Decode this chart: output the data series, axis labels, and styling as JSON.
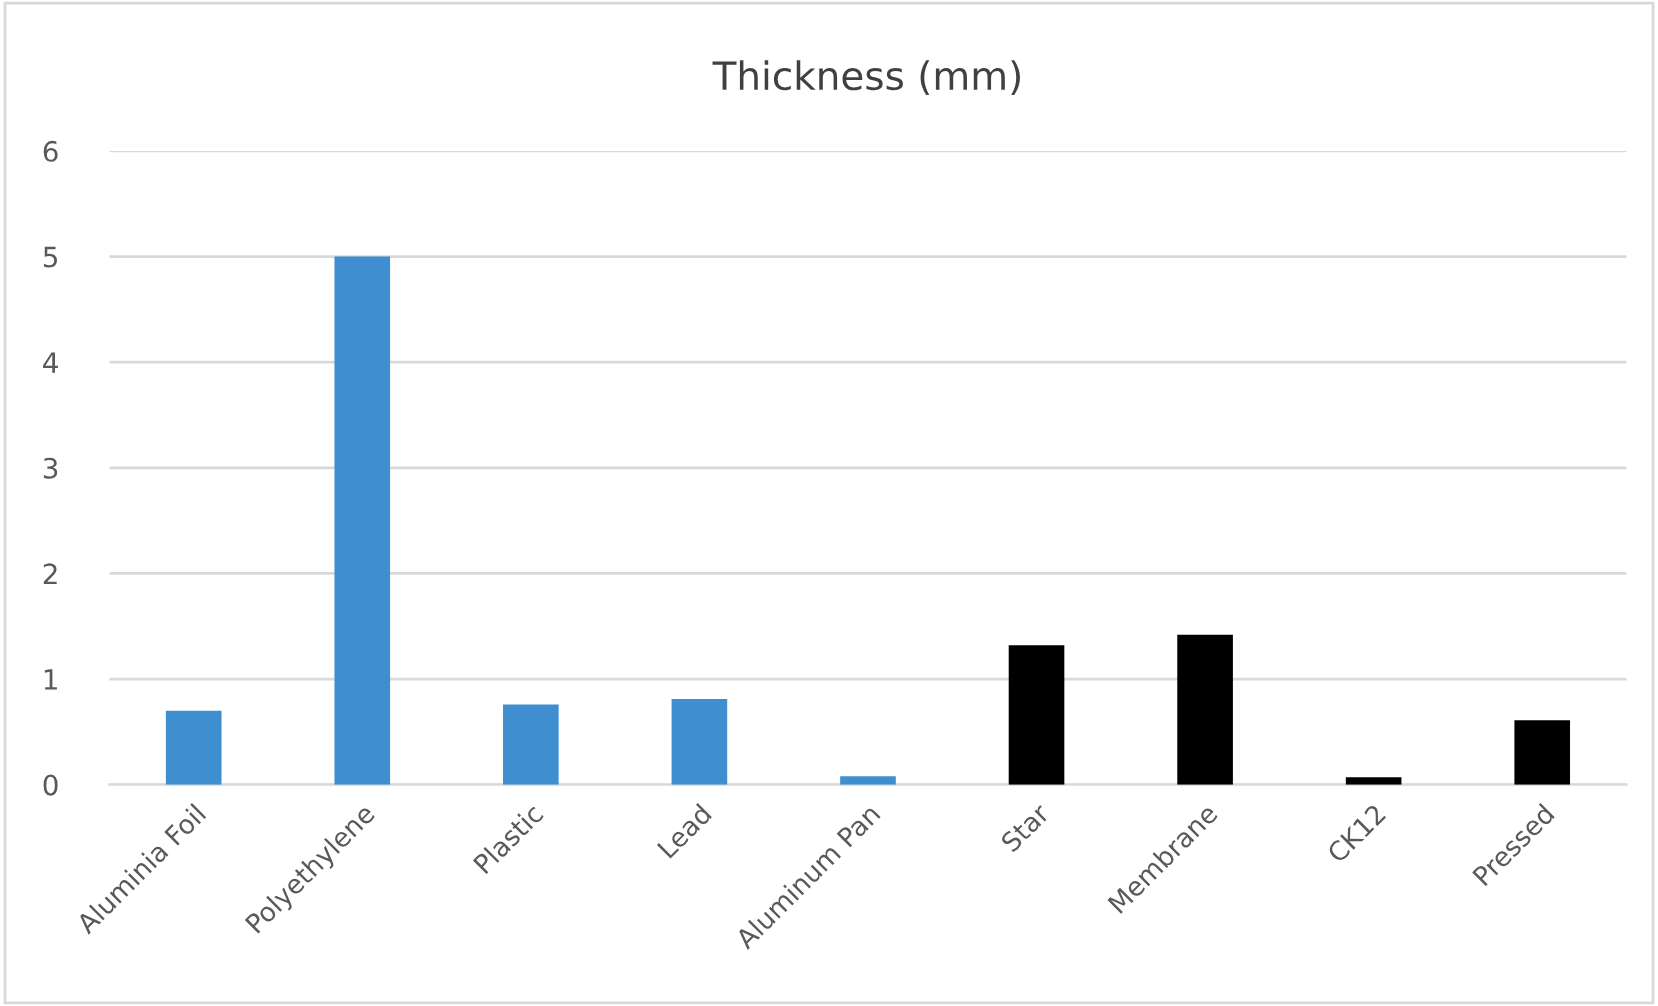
{
  "chart_data": {
    "type": "bar",
    "title": "Thickness (mm)",
    "categories": [
      "Aluminia Foil",
      "Polyethylene",
      "Plastic",
      "Lead",
      "Aluminum Pan",
      "Star",
      "Membrane",
      "CK12",
      "Pressed"
    ],
    "values": [
      0.7,
      5.0,
      0.76,
      0.81,
      0.08,
      1.32,
      1.42,
      0.07,
      0.61
    ],
    "colors": [
      "#3f8fd0",
      "#3f8fd0",
      "#3f8fd0",
      "#3f8fd0",
      "#3f8fd0",
      "#000000",
      "#000000",
      "#000000",
      "#000000"
    ],
    "ylim": [
      0,
      6
    ],
    "yticks": [
      0,
      1,
      2,
      3,
      4,
      5,
      6
    ],
    "grid": "y"
  }
}
